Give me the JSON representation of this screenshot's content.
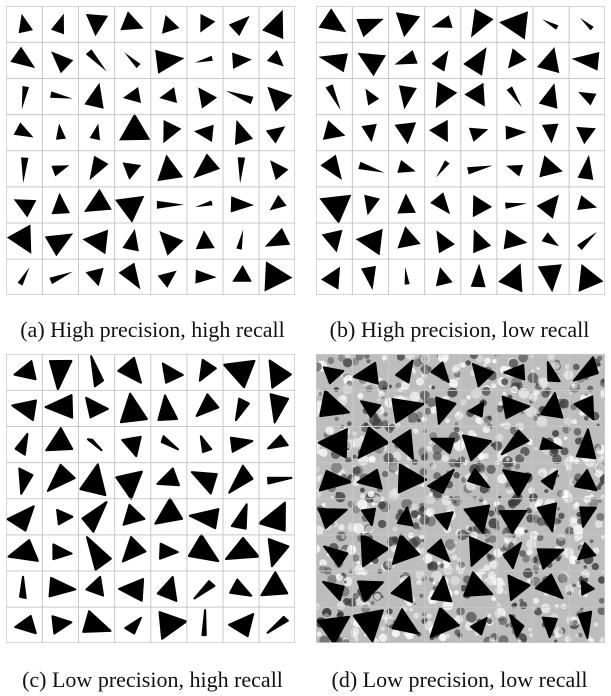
{
  "figure": {
    "panels": [
      {
        "id": "a",
        "caption": "(a) High precision, high recall",
        "style": "clean"
      },
      {
        "id": "b",
        "caption": "(b) High precision, low recall",
        "style": "clean"
      },
      {
        "id": "c",
        "caption": "(c) Low precision, high recall",
        "style": "blobby"
      },
      {
        "id": "d",
        "caption": "(d) Low precision, low recall",
        "style": "noisy"
      }
    ],
    "grid": {
      "rows": 8,
      "cols": 8
    },
    "colors": {
      "shape": "#000000",
      "grid": "#c8c8c8",
      "noise_bg": "#bdbdbd"
    }
  }
}
